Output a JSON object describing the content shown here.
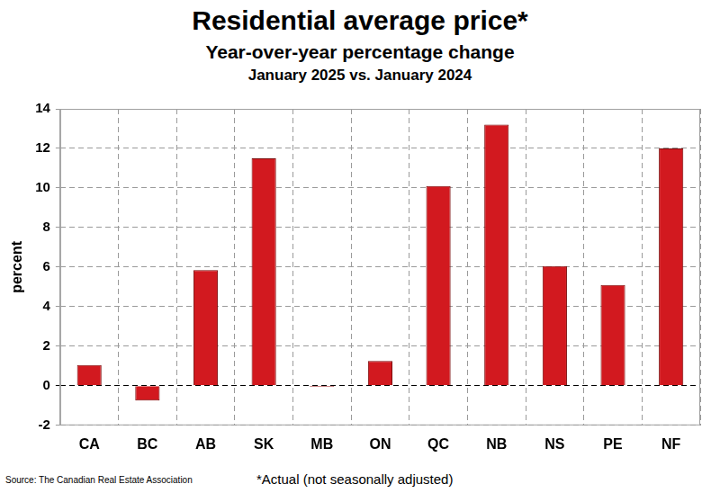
{
  "chart_data": {
    "type": "bar",
    "title": "Residential average price*",
    "subtitle": [
      "Year-over-year percentage change",
      "January 2025 vs. January 2024"
    ],
    "y_label": "percent",
    "categories": [
      "CA",
      "BC",
      "AB",
      "SK",
      "MB",
      "ON",
      "QC",
      "NB",
      "NS",
      "PE",
      "NF"
    ],
    "values": [
      1.05,
      -0.75,
      5.85,
      11.5,
      -0.05,
      1.25,
      10.1,
      13.2,
      6.05,
      5.1,
      12.0
    ],
    "color": "#d2191f",
    "ylim": [
      -2,
      14
    ],
    "yticks": [
      -2,
      0,
      2,
      4,
      6,
      8,
      10,
      12,
      14
    ],
    "grid": true,
    "source": "Source: The Canadian Real Estate Association",
    "note": "*Actual (not seasonally adjusted)"
  }
}
